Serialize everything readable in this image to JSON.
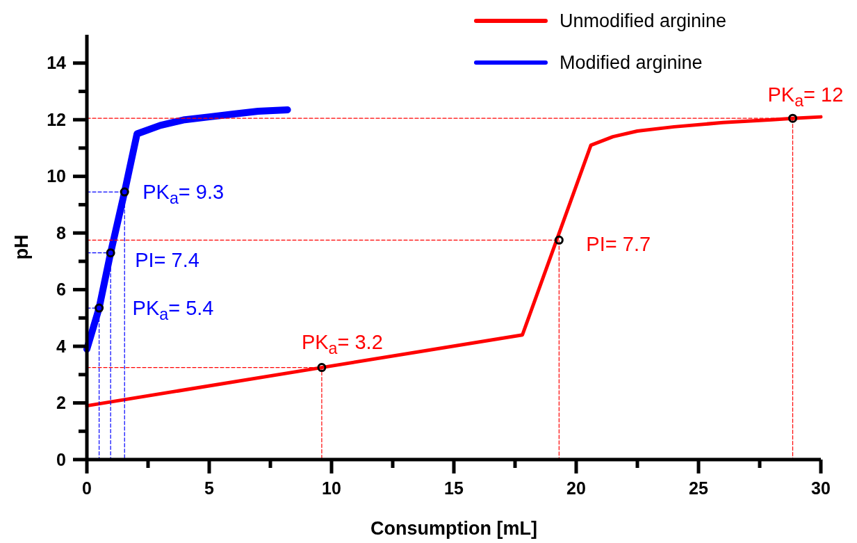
{
  "chart_data": {
    "type": "line",
    "xlabel": "Consumption [mL]",
    "ylabel": "pH",
    "xlim": [
      0,
      30
    ],
    "ylim": [
      0,
      15
    ],
    "xticks": [
      0,
      {
        "value": 2.5,
        "label": null
      },
      5,
      {
        "value": 7.5,
        "label": null
      },
      10,
      {
        "value": 12.5,
        "label": null
      },
      15,
      {
        "value": 17.5,
        "label": null
      },
      20,
      {
        "value": 22.5,
        "label": null
      },
      25,
      {
        "value": 27.5,
        "label": null
      },
      30
    ],
    "yticks": [
      0,
      {
        "value": 1,
        "label": null
      },
      2,
      {
        "value": 3,
        "label": null
      },
      4,
      {
        "value": 5,
        "label": null
      },
      6,
      {
        "value": 7,
        "label": null
      },
      8,
      {
        "value": 9,
        "label": null
      },
      10,
      {
        "value": 11,
        "label": null
      },
      12,
      {
        "value": 13,
        "label": null
      },
      14
    ],
    "grid": false,
    "legend": "top right",
    "series": [
      {
        "name": "Unmodified arginine",
        "color": "#ff0000",
        "x": [
          0,
          9.6,
          17.8,
          20.6,
          21.5,
          22.5,
          24,
          26,
          28,
          28.85,
          30
        ],
        "values": [
          1.9,
          3.25,
          4.4,
          11.1,
          11.4,
          11.6,
          11.75,
          11.9,
          12.0,
          12.05,
          12.1
        ],
        "marker": "none"
      },
      {
        "name": "Modified arginine",
        "color": "#0000ff",
        "x": [
          0,
          0.5,
          0.97,
          1.54,
          2.05,
          3,
          4,
          5,
          6,
          7,
          8.2
        ],
        "values": [
          3.9,
          5.35,
          7.3,
          9.45,
          11.5,
          11.8,
          12.0,
          12.1,
          12.2,
          12.3,
          12.35
        ],
        "marker": "none"
      },
      {
        "type": "line",
        "color": "#ff0000",
        "line_style": "dashed",
        "marker": "none",
        "x": [
          0,
          9.6,
          9.6
        ],
        "values": [
          3.25,
          3.25,
          0
        ]
      },
      {
        "type": "line",
        "color": "#ff0000",
        "line_style": "dashed",
        "marker": "none",
        "x": [
          0,
          19.3,
          19.3
        ],
        "values": [
          7.75,
          7.75,
          0
        ]
      },
      {
        "type": "line",
        "color": "#ff0000",
        "line_style": "dashed",
        "marker": "none",
        "x": [
          0,
          28.85,
          28.85
        ],
        "values": [
          12.05,
          12.05,
          0
        ]
      },
      {
        "type": "line",
        "color": "#0000ff",
        "line_style": "dashed",
        "marker": "none",
        "x": [
          0,
          0.5,
          0.5
        ],
        "values": [
          5.35,
          5.35,
          0
        ]
      },
      {
        "type": "line",
        "color": "#0000ff",
        "line_style": "dashed",
        "marker": "none",
        "x": [
          0,
          0.97,
          0.97
        ],
        "values": [
          7.3,
          7.3,
          0
        ]
      },
      {
        "type": "line",
        "color": "#0000ff",
        "line_style": "dashed",
        "marker": "none",
        "x": [
          0,
          1.54,
          1.54
        ],
        "values": [
          9.45,
          9.45,
          0
        ]
      },
      {
        "type": "scatter",
        "color": "#000000",
        "marker": "circle",
        "x": [
          9.6,
          19.3,
          28.85,
          0.5,
          0.97,
          1.54
        ],
        "values": [
          3.25,
          7.75,
          12.05,
          5.35,
          7.3,
          9.45
        ]
      }
    ],
    "annotations": [
      {
        "text": "PK$_{a}$= 9.3",
        "x": 1.54,
        "y": 9.45
      },
      {
        "text": "PI= 7.4",
        "x": 0.97,
        "y": 7.3
      },
      {
        "text": "PK$_{a}$= 5.4",
        "x": 0.5,
        "y": 5.35
      },
      {
        "text": "PK$_{a}$= 3.2",
        "x": 9.6,
        "y": 3.25
      },
      {
        "text": "PI= 7.7",
        "x": 19.3,
        "y": 7.75
      },
      {
        "text": "PK$_{a}$= 12",
        "x": 28.85,
        "y": 12.05
      }
    ]
  }
}
